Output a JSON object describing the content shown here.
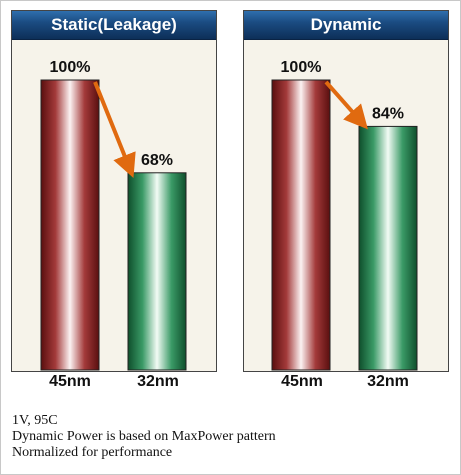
{
  "chart_data": [
    {
      "type": "bar",
      "title": "Static(Leakage)",
      "categories": [
        "45nm",
        "32nm"
      ],
      "values": [
        100,
        68
      ],
      "value_labels": [
        "100%",
        "68%"
      ],
      "ylim": [
        0,
        100
      ],
      "grid": false,
      "annotation": "arrow from first bar to second bar",
      "colors": [
        "#9a2b2b",
        "#2f9a5d"
      ],
      "arrow_color": "#e06a10"
    },
    {
      "type": "bar",
      "title": "Dynamic",
      "categories": [
        "45nm",
        "32nm"
      ],
      "values": [
        100,
        84
      ],
      "value_labels": [
        "100%",
        "84%"
      ],
      "ylim": [
        0,
        100
      ],
      "grid": false,
      "annotation": "arrow from first bar to second bar",
      "colors": [
        "#9a2b2b",
        "#2f9a5d"
      ],
      "arrow_color": "#e06a10"
    }
  ],
  "notes": [
    "1V, 95C",
    "Dynamic Power is based on MaxPower pattern",
    "Normalized for performance"
  ]
}
